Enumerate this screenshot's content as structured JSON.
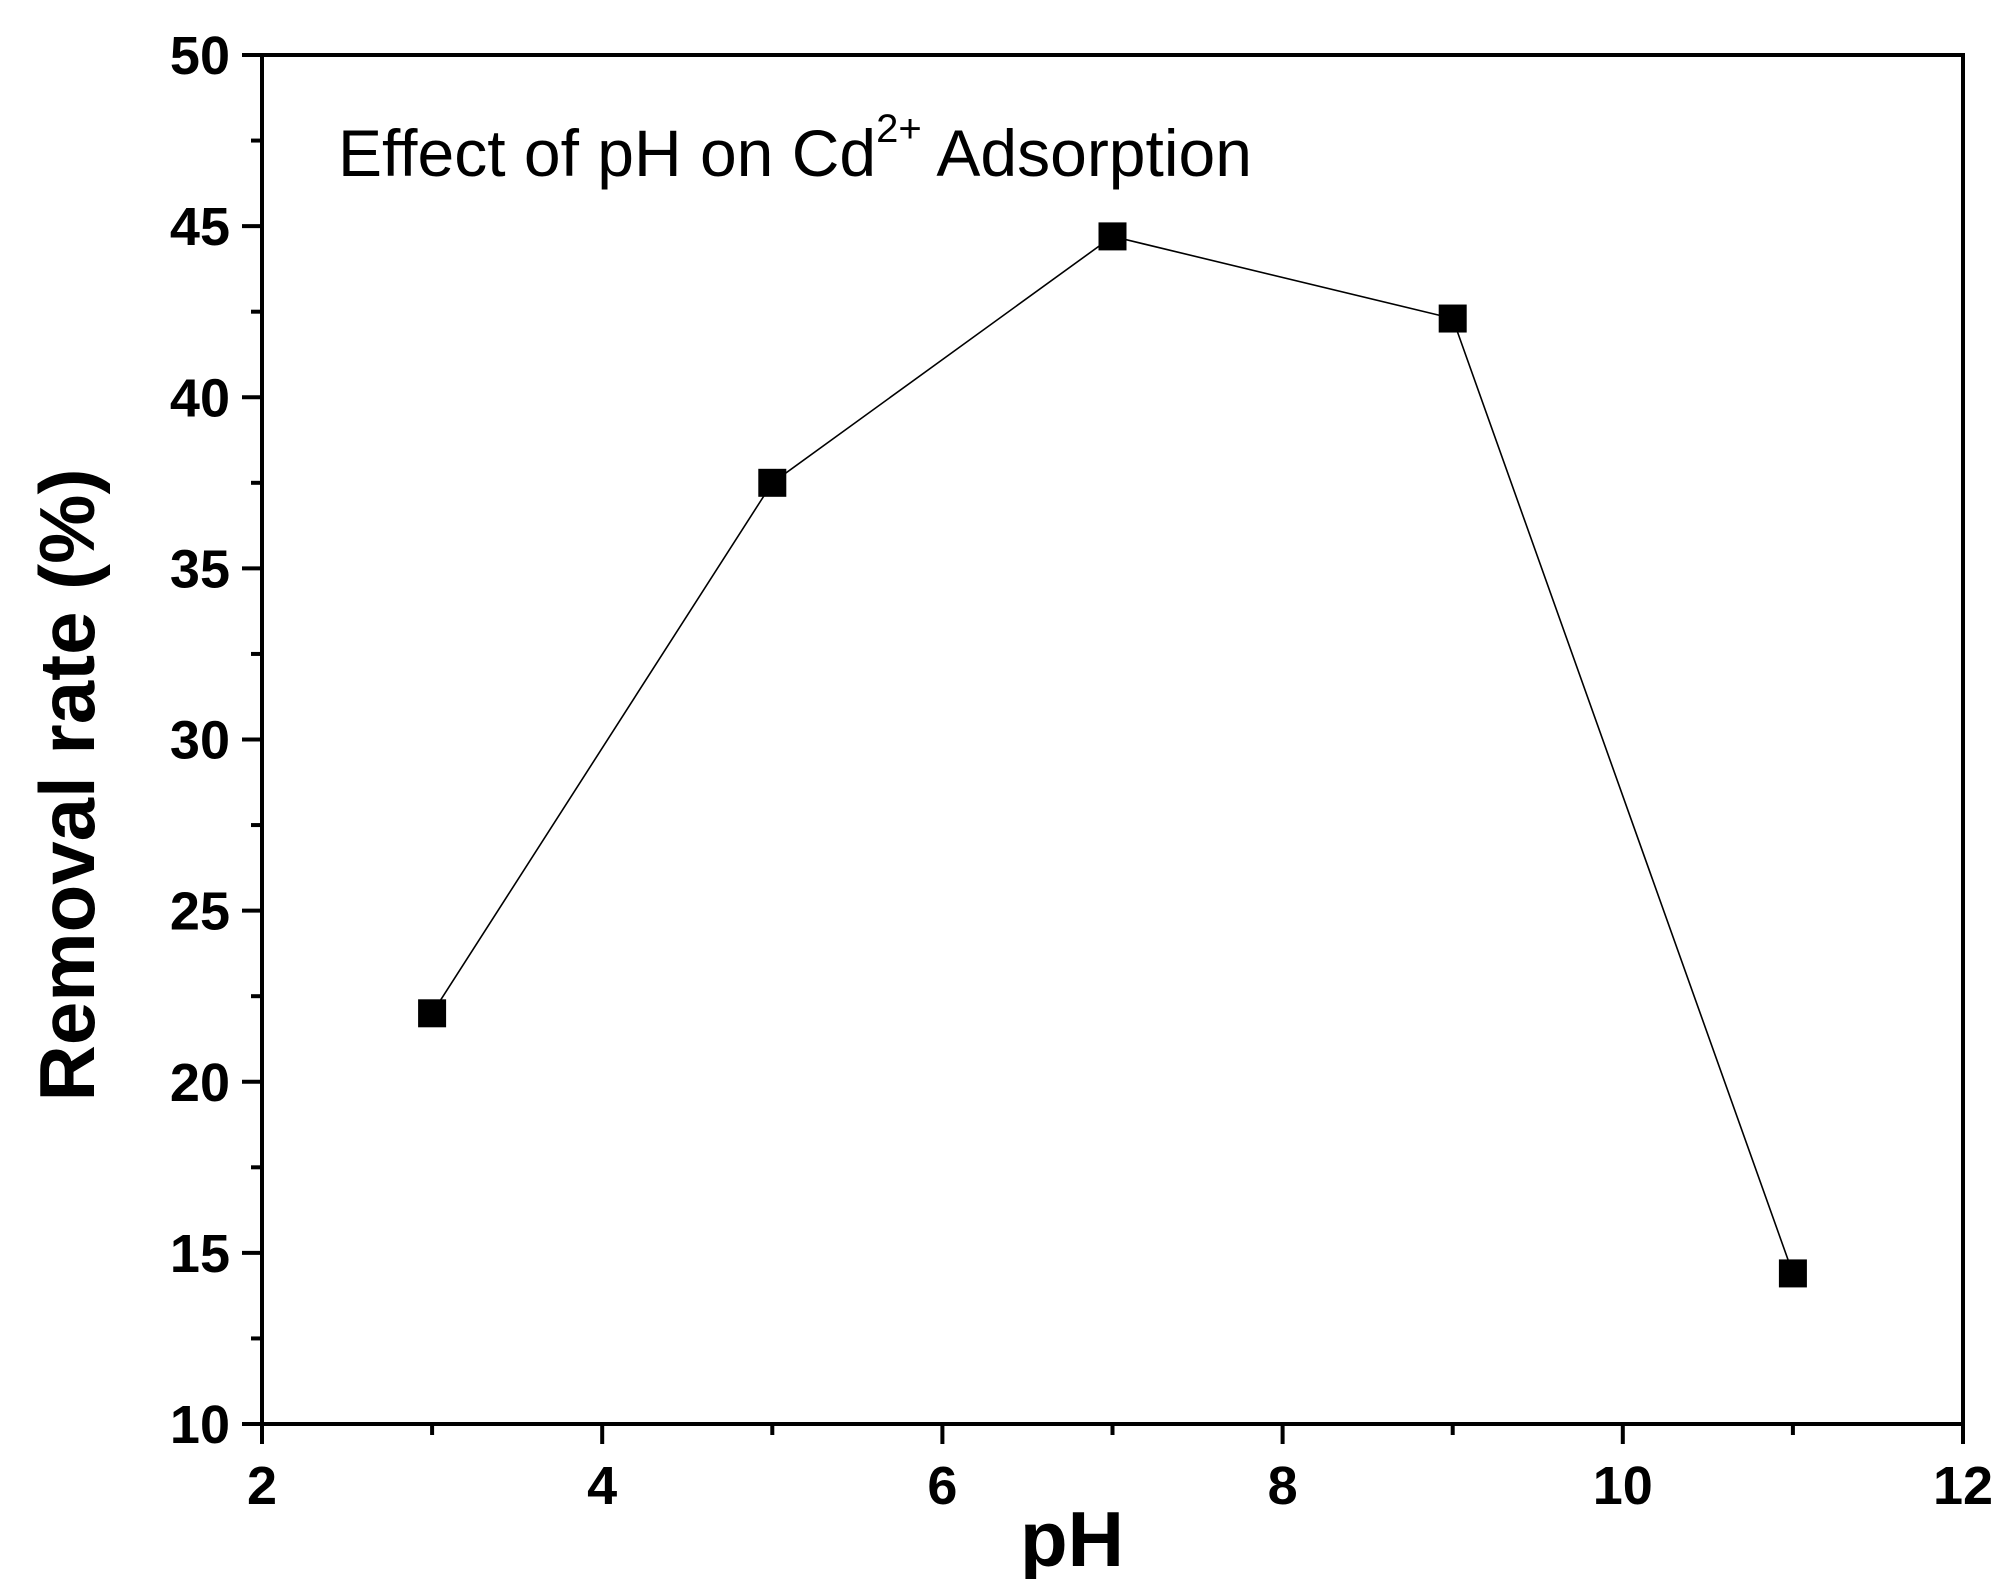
{
  "chart_data": {
    "type": "line",
    "title": "",
    "xlabel": "pH",
    "ylabel": "Removal rate (%)",
    "xlim": [
      2,
      12
    ],
    "ylim": [
      10,
      50
    ],
    "x_major_ticks": [
      2,
      4,
      6,
      8,
      10,
      12
    ],
    "x_tick_labels": [
      "2",
      "4",
      "6",
      "8",
      "10",
      "12"
    ],
    "y_major_ticks": [
      10,
      15,
      20,
      25,
      30,
      35,
      40,
      45,
      50
    ],
    "y_tick_labels": [
      "10",
      "15",
      "20",
      "25",
      "30",
      "35",
      "40",
      "45",
      "50"
    ],
    "grid": false,
    "annotation": {
      "text_before": "Effect of pH on Cd",
      "superscript": "2+",
      "text_after": " Adsorption"
    },
    "series": [
      {
        "name": "Removal rate",
        "marker": "square",
        "color": "#000000",
        "x": [
          3,
          5,
          7,
          9,
          11
        ],
        "y": [
          22.0,
          37.5,
          44.7,
          42.3,
          14.4
        ]
      }
    ]
  }
}
